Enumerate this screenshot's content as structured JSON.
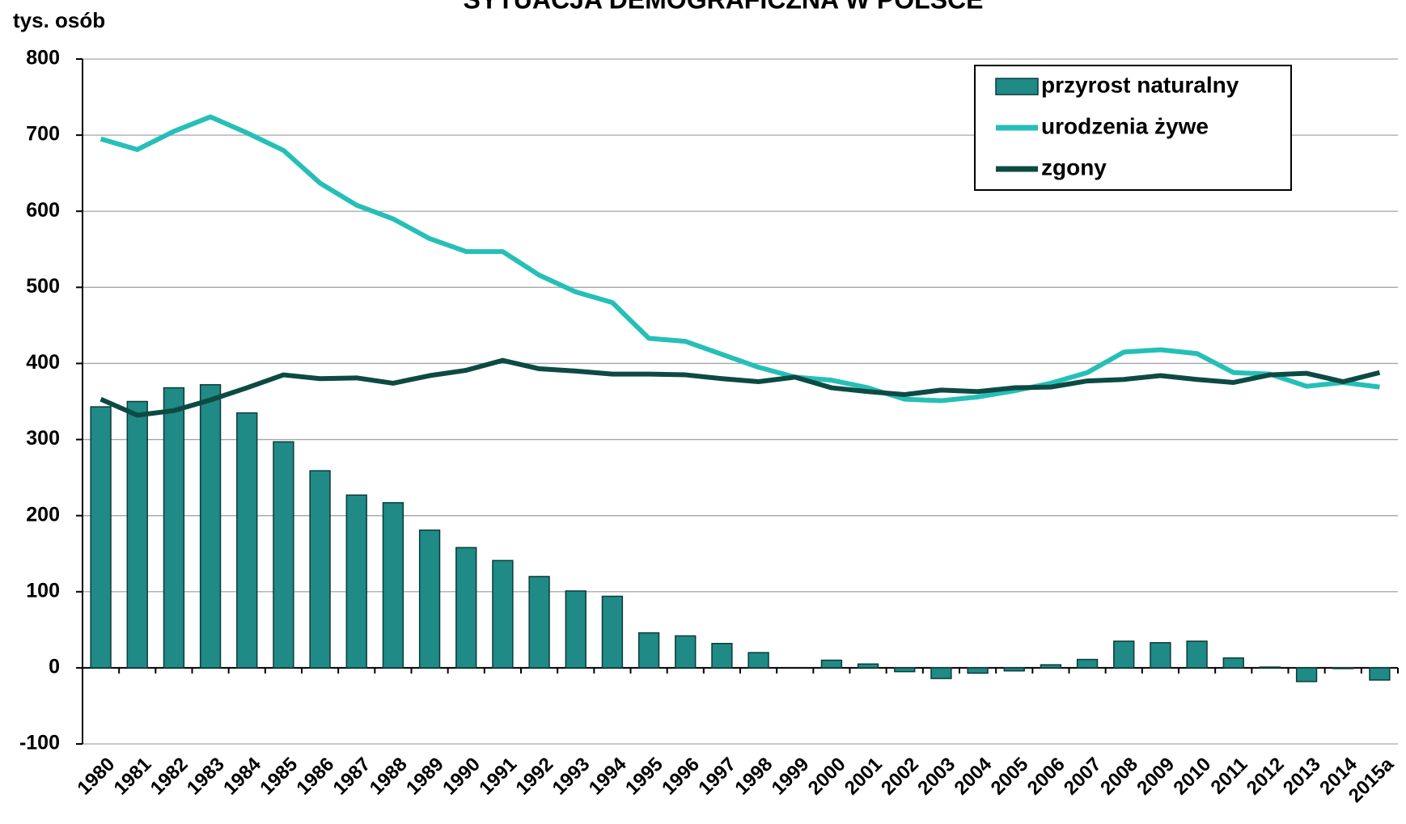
{
  "chart_data": {
    "type": "bar",
    "title": "SYTUACJA DEMOGRAFICZNA W POLSCE",
    "y_label": "tys. osób",
    "categories": [
      "1980",
      "1981",
      "1982",
      "1983",
      "1984",
      "1985",
      "1986",
      "1987",
      "1988",
      "1989",
      "1990",
      "1991",
      "1992",
      "1993",
      "1994",
      "1995",
      "1996",
      "1997",
      "1998",
      "1999",
      "2000",
      "2001",
      "2002",
      "2003",
      "2004",
      "2005",
      "2006",
      "2007",
      "2008",
      "2009",
      "2010",
      "2011",
      "2012",
      "2013",
      "2014",
      "2015a"
    ],
    "series": [
      {
        "name": "przyrost naturalny",
        "type": "bar",
        "color": "#1f8a86",
        "values": [
          343,
          350,
          368,
          372,
          335,
          297,
          259,
          227,
          217,
          181,
          158,
          141,
          120,
          101,
          94,
          46,
          42,
          32,
          20,
          0,
          10,
          5,
          -5,
          -14,
          -7,
          -4,
          4,
          11,
          35,
          33,
          35,
          13,
          1,
          -18,
          -1,
          -16
        ]
      },
      {
        "name": "urodzenia żywe",
        "type": "line",
        "color": "#26bfb8",
        "values": [
          695,
          681,
          705,
          724,
          703,
          680,
          637,
          608,
          590,
          564,
          547,
          547,
          516,
          494,
          480,
          433,
          429,
          412,
          395,
          382,
          378,
          368,
          353,
          351,
          356,
          364,
          374,
          388,
          415,
          418,
          413,
          388,
          386,
          370,
          375,
          369
        ]
      },
      {
        "name": "zgony",
        "type": "line",
        "color": "#0d4a44",
        "values": [
          353,
          332,
          338,
          352,
          368,
          385,
          380,
          381,
          374,
          384,
          391,
          404,
          393,
          390,
          386,
          386,
          385,
          380,
          376,
          382,
          368,
          363,
          359,
          365,
          363,
          368,
          369,
          377,
          379,
          384,
          379,
          375,
          385,
          387,
          376,
          388
        ]
      }
    ],
    "ylim": [
      -100,
      800
    ],
    "yticks": [
      -100,
      0,
      100,
      200,
      300,
      400,
      500,
      600,
      700,
      800
    ],
    "grid": true,
    "legend": "upper right"
  }
}
